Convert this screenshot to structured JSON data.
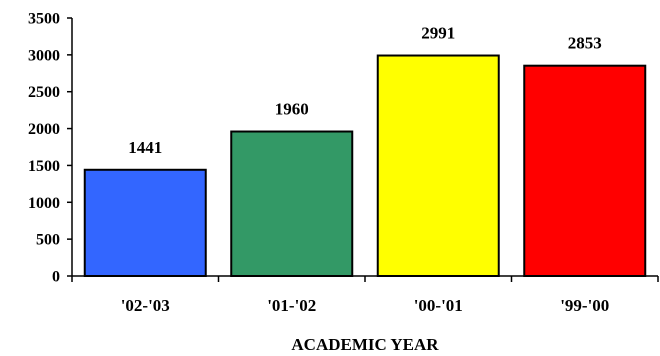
{
  "chart_data": {
    "type": "bar",
    "categories": [
      "'02-'03",
      "'01-'02",
      "'00-'01",
      "'99-'00"
    ],
    "values": [
      1441,
      1960,
      2991,
      2853
    ],
    "data_labels": [
      "1441",
      "1960",
      "2991",
      "2853"
    ],
    "colors": [
      "#3366ff",
      "#339966",
      "#ffff00",
      "#ff0000"
    ],
    "xlabel": "ACADEMIC YEAR",
    "ylabel": "",
    "ylim": [
      0,
      3500
    ],
    "yticks": [
      0,
      500,
      1000,
      1500,
      2000,
      2500,
      3000,
      3500
    ],
    "grid": false,
    "legend": "none"
  }
}
